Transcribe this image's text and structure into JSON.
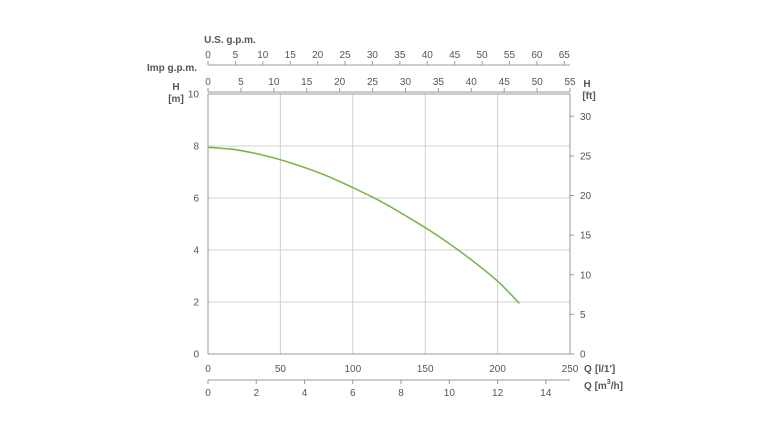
{
  "chart_data": {
    "type": "line",
    "colors": {
      "curve": "#7ab648",
      "grid": "#d0d0d0",
      "axis": "#999999",
      "text": "#555555"
    },
    "grid": true,
    "series": [
      {
        "name": "",
        "x": [
          0,
          20,
          40,
          60,
          80,
          100,
          120,
          140,
          160,
          180,
          200,
          215
        ],
        "y": [
          7.95,
          7.85,
          7.62,
          7.3,
          6.9,
          6.4,
          5.85,
          5.2,
          4.5,
          3.7,
          2.8,
          1.95
        ]
      }
    ],
    "axes": {
      "left": {
        "label": "H",
        "unit": "[m]",
        "ylim": [
          0,
          10
        ],
        "ticks": [
          "0",
          "2",
          "4",
          "6",
          "8",
          "10"
        ]
      },
      "right": {
        "label": "H",
        "unit": "[ft]",
        "ylim": [
          0,
          32.81
        ],
        "ticks": [
          "0",
          "5",
          "10",
          "15",
          "20",
          "25",
          "30"
        ]
      },
      "bottom_primary": {
        "label": "Q",
        "unit": "[l/1']",
        "xlim": [
          0,
          250
        ],
        "ticks": [
          "0",
          "50",
          "100",
          "150",
          "200",
          "250"
        ]
      },
      "bottom_secondary": {
        "label": "Q",
        "unit": "[m",
        "unit_sup": "3",
        "unit_end": "/h]",
        "xlim": [
          0,
          15
        ],
        "ticks": [
          "0",
          "2",
          "4",
          "6",
          "8",
          "10",
          "12",
          "14"
        ]
      },
      "top_primary": {
        "label": "U.S. g.p.m.",
        "xlim": [
          0,
          66.04
        ],
        "ticks": [
          "0",
          "5",
          "10",
          "15",
          "20",
          "25",
          "30",
          "35",
          "40",
          "45",
          "50",
          "55",
          "60",
          "65"
        ]
      },
      "top_secondary": {
        "label": "Imp g.p.m.",
        "xlim": [
          0,
          54.99
        ],
        "ticks": [
          "0",
          "5",
          "10",
          "15",
          "20",
          "25",
          "30",
          "35",
          "40",
          "45",
          "50",
          "55"
        ]
      }
    }
  }
}
